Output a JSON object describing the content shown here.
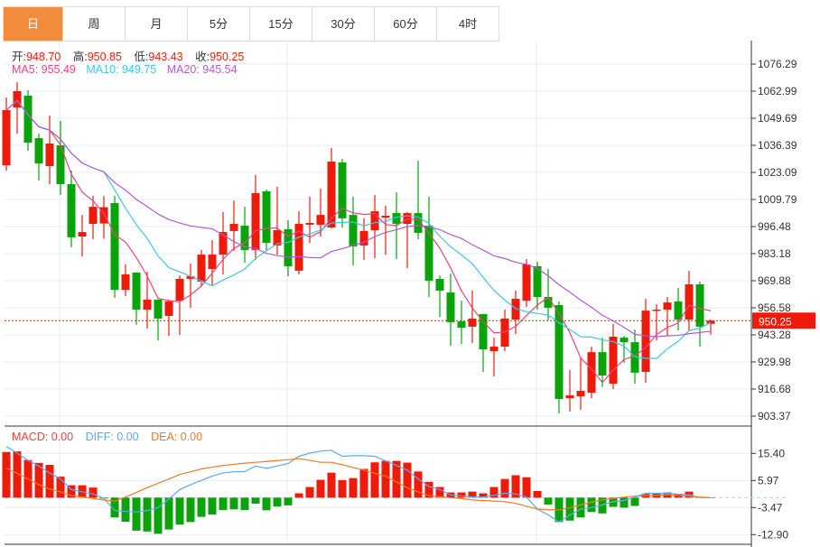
{
  "tabs": [
    "日",
    "周",
    "月",
    "5分",
    "15分",
    "30分",
    "60分",
    "4时"
  ],
  "active_tab": 0,
  "ohlc": {
    "open_label": "开:",
    "open": "948.70",
    "high_label": "高:",
    "high": "950.85",
    "low_label": "低:",
    "low": "943.43",
    "close_label": "收:",
    "close": "950.25"
  },
  "ma_legend": {
    "ma5": "MA5: 955.49",
    "ma10": "MA10: 949.75",
    "ma20": "MA20: 945.54"
  },
  "macd_legend": {
    "macd": "MACD: 0.00",
    "diff": "DIFF: 0.00",
    "dea": "DEA: 0.00"
  },
  "current_price": "950.25",
  "colors": {
    "up": "#f01a0a",
    "down": "#0aa30a",
    "ma5": "#e8457a",
    "ma10": "#3cc8e0",
    "ma20": "#b25bd0",
    "diff": "#5aaaf0",
    "dea": "#f47a20",
    "tab_active": "#f28c3c"
  },
  "chart_data": [
    {
      "type": "candlestick",
      "title": "",
      "y_ticks": [
        "1076.29",
        "1062.99",
        "1049.69",
        "1036.39",
        "1023.09",
        "1009.79",
        "996.48",
        "983.18",
        "969.88",
        "956.58",
        "943.28",
        "929.98",
        "916.68",
        "903.37"
      ],
      "ylim": [
        903.37,
        1076.29
      ],
      "grid": true,
      "ohlc": [
        [
          1026.6,
          1059.9,
          1024.0,
          1053.7
        ],
        [
          1055.0,
          1067.4,
          1042.1,
          1063.0
        ],
        [
          1060.8,
          1063.4,
          1033.7,
          1037.7
        ],
        [
          1039.9,
          1042.1,
          1019.1,
          1027.5
        ],
        [
          1026.2,
          1051.0,
          1017.3,
          1037.3
        ],
        [
          1036.4,
          1048.4,
          1012.0,
          1017.3
        ],
        [
          1017.3,
          1024.0,
          986.3,
          991.2
        ],
        [
          991.6,
          1002.2,
          981.8,
          993.8
        ],
        [
          997.8,
          1011.6,
          990.3,
          1006.2
        ],
        [
          998.0,
          1011.5,
          990.5,
          1006.0
        ],
        [
          1008.0,
          1011.6,
          961.5,
          965.4
        ],
        [
          965.4,
          977.9,
          962.3,
          973.0
        ],
        [
          973.9,
          973.9,
          948.2,
          955.7
        ],
        [
          955.7,
          974.3,
          946.4,
          960.6
        ],
        [
          960.6,
          960.6,
          940.6,
          951.3
        ],
        [
          952.6,
          960.6,
          942.8,
          959.7
        ],
        [
          960.1,
          972.5,
          943.3,
          970.8
        ],
        [
          970.8,
          978.3,
          956.6,
          972.1
        ],
        [
          969.4,
          985.0,
          967.2,
          982.7
        ],
        [
          975.6,
          989.8,
          967.7,
          982.7
        ],
        [
          982.7,
          1003.6,
          973.0,
          993.8
        ],
        [
          994.3,
          1009.3,
          984.5,
          997.8
        ],
        [
          996.9,
          1006.2,
          978.7,
          985.0
        ],
        [
          985.0,
          1021.8,
          980.1,
          1012.9
        ],
        [
          1013.8,
          1014.7,
          984.5,
          988.5
        ],
        [
          987.2,
          1016.0,
          982.7,
          994.7
        ],
        [
          995.2,
          999.6,
          972.1,
          977.0
        ],
        [
          974.8,
          1004.0,
          973.0,
          997.8
        ],
        [
          997.4,
          1011.1,
          988.5,
          998.3
        ],
        [
          997.4,
          1015.1,
          991.6,
          1002.2
        ],
        [
          996.0,
          1035.1,
          995.6,
          1028.4
        ],
        [
          1028.0,
          1029.7,
          996.0,
          1000.5
        ],
        [
          1002.2,
          1011.1,
          977.4,
          986.7
        ],
        [
          987.2,
          1000.5,
          980.1,
          994.3
        ],
        [
          994.7,
          1012.0,
          981.0,
          1004.0
        ],
        [
          1000.9,
          1006.7,
          982.7,
          1001.8
        ],
        [
          1003.1,
          1013.3,
          980.5,
          997.8
        ],
        [
          997.8,
          1003.6,
          976.1,
          1003.1
        ],
        [
          1003.1,
          1028.8,
          990.3,
          993.4
        ],
        [
          996.9,
          1011.1,
          961.9,
          969.9
        ],
        [
          970.8,
          972.5,
          952.1,
          965.0
        ],
        [
          964.1,
          973.4,
          937.9,
          949.5
        ],
        [
          949.9,
          960.1,
          938.8,
          946.8
        ],
        [
          947.3,
          965.0,
          939.3,
          951.3
        ],
        [
          953.5,
          953.5,
          925.1,
          936.2
        ],
        [
          935.3,
          941.9,
          922.9,
          937.5
        ],
        [
          937.5,
          955.7,
          935.3,
          951.3
        ],
        [
          950.8,
          965.0,
          943.7,
          961.0
        ],
        [
          960.1,
          980.5,
          957.0,
          977.9
        ],
        [
          977.0,
          979.2,
          955.7,
          961.9
        ],
        [
          961.9,
          975.6,
          950.4,
          956.6
        ],
        [
          957.9,
          959.7,
          904.7,
          911.8
        ],
        [
          912.2,
          926.0,
          905.6,
          913.6
        ],
        [
          913.1,
          932.2,
          906.5,
          915.8
        ],
        [
          914.9,
          937.5,
          912.2,
          934.8
        ],
        [
          934.8,
          941.9,
          917.6,
          923.3
        ],
        [
          919.3,
          948.6,
          916.7,
          942.4
        ],
        [
          941.9,
          942.8,
          929.5,
          939.7
        ],
        [
          939.7,
          945.9,
          919.3,
          924.7
        ],
        [
          925.1,
          961.0,
          919.8,
          955.2
        ],
        [
          955.2,
          958.3,
          940.6,
          955.7
        ],
        [
          955.7,
          961.9,
          942.8,
          959.2
        ],
        [
          959.7,
          966.3,
          945.5,
          950.8
        ],
        [
          950.8,
          974.8,
          945.5,
          968.1
        ],
        [
          968.1,
          969.4,
          937.5,
          947.3
        ],
        [
          948.7,
          950.85,
          943.43,
          950.25
        ]
      ],
      "ma_periods": [
        5,
        10,
        20
      ]
    },
    {
      "type": "bar+line",
      "title": "MACD",
      "y_ticks": [
        "15.40",
        "5.97",
        "-3.47",
        "-12.90"
      ],
      "ylim": [
        -15,
        19
      ],
      "macd": [
        15.9,
        16.1,
        13.1,
        12.1,
        11.4,
        7.3,
        4.3,
        4.3,
        3.5,
        -0.3,
        -6.9,
        -8.4,
        -11.5,
        -11.8,
        -12.6,
        -11.1,
        -9.4,
        -8.5,
        -6.7,
        -5.9,
        -4.3,
        -4.1,
        -4.3,
        -2.1,
        -4.4,
        -3.1,
        -2.7,
        1.5,
        3.7,
        6.2,
        8.7,
        6.1,
        6.8,
        10.0,
        12.3,
        12.8,
        12.8,
        12.2,
        9.1,
        5.5,
        3.7,
        1.8,
        1.8,
        2.1,
        1.5,
        3.7,
        6.5,
        7.8,
        7.1,
        2.3,
        -2.4,
        -8.5,
        -8.0,
        -6.9,
        -5.0,
        -5.5,
        -3.2,
        -3.5,
        -2.9,
        1.3,
        1.5,
        1.8,
        1.3,
        2.1,
        0.1,
        0
      ],
      "diff": [
        17.8,
        15.5,
        13.0,
        11.0,
        8.6,
        6.5,
        2.8,
        2.0,
        1.3,
        -0.3,
        -4.5,
        -4.8,
        -5.0,
        -4.5,
        -3.5,
        -0.5,
        2.8,
        4.5,
        6.0,
        7.5,
        8.6,
        9.0,
        9.1,
        11.0,
        10.2,
        11.0,
        11.9,
        14.4,
        15.5,
        16.2,
        16.5,
        14.4,
        14.6,
        14.6,
        14.4,
        12.8,
        11.2,
        9.6,
        6.5,
        3.9,
        2.8,
        0.9,
        0.5,
        0.3,
        0.2,
        0.8,
        1.5,
        1.3,
        0.2,
        -4.0,
        -6.0,
        -8.5,
        -6.1,
        -4.0,
        -3.5,
        -2.5,
        -1.4,
        -1.0,
        0.2,
        1.5,
        1.5,
        1.5,
        1.2,
        1.0,
        0,
        0
      ],
      "dea": [
        10.2,
        8.5,
        6.5,
        4.5,
        3.0,
        2.0,
        0.7,
        0.2,
        -0.3,
        -0.8,
        -1.2,
        0.2,
        1.8,
        3.5,
        5.0,
        6.5,
        8.1,
        9.0,
        10.0,
        10.6,
        11.2,
        11.6,
        12.0,
        12.3,
        12.6,
        12.9,
        13.2,
        13.6,
        13.0,
        12.3,
        12.3,
        11.5,
        10.5,
        9.6,
        8.5,
        7.5,
        5.5,
        3.4,
        2.0,
        0.7,
        0.3,
        0,
        -0.3,
        -0.8,
        -1.0,
        -1.2,
        -1.4,
        -2.0,
        -3.0,
        -4.0,
        -4.2,
        -4.3,
        -3.5,
        -2.5,
        -1.6,
        -0.8,
        -0.3,
        0.2,
        0.5,
        0.7,
        0.8,
        1.0,
        0.7,
        0.5,
        0.2,
        0
      ]
    }
  ]
}
